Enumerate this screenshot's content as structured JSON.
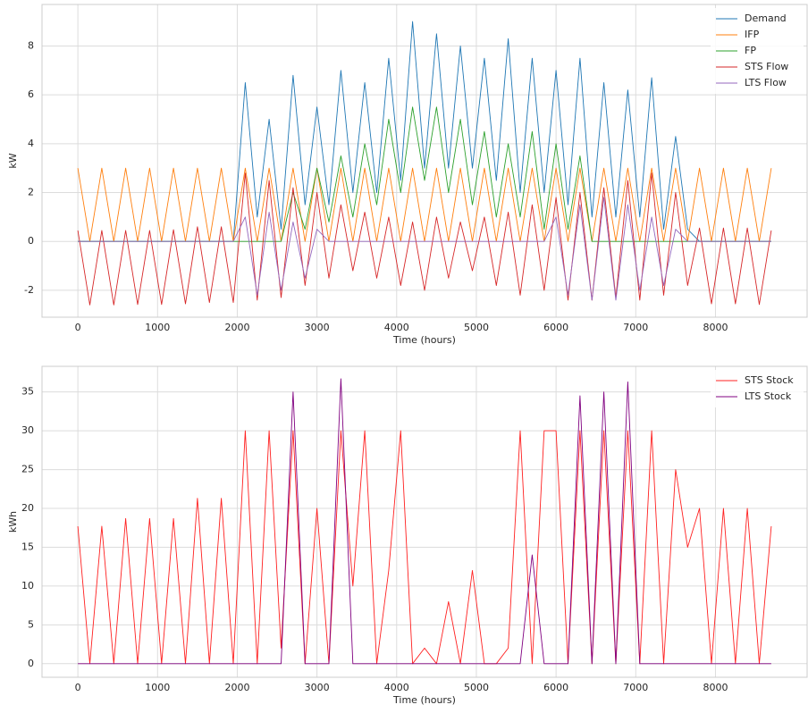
{
  "chart_data": [
    {
      "type": "line",
      "xlabel": "Time (hours)",
      "ylabel": "kW",
      "x": [
        0,
        150,
        300,
        450,
        600,
        750,
        900,
        1050,
        1200,
        1350,
        1500,
        1650,
        1800,
        1950,
        2100,
        2250,
        2400,
        2550,
        2700,
        2850,
        3000,
        3150,
        3300,
        3450,
        3600,
        3750,
        3900,
        4050,
        4200,
        4350,
        4500,
        4650,
        4800,
        4950,
        5100,
        5250,
        5400,
        5550,
        5700,
        5850,
        6000,
        6150,
        6300,
        6450,
        6600,
        6750,
        6900,
        7050,
        7200,
        7350,
        7500,
        7650,
        7800,
        7950,
        8100,
        8250,
        8400,
        8550,
        8700
      ],
      "series": [
        {
          "name": "Demand",
          "color": "#1f77b4",
          "values": [
            0,
            0,
            0,
            0,
            0,
            0,
            0,
            0,
            0,
            0,
            0,
            0,
            0,
            0,
            6.5,
            1,
            5,
            0.5,
            6.8,
            1.5,
            5.5,
            1.5,
            7,
            2,
            6.5,
            2,
            7.5,
            2.5,
            9,
            3,
            8.5,
            3,
            8,
            3,
            7.5,
            2.5,
            8.3,
            2,
            7.5,
            2,
            7,
            1.5,
            7.5,
            1,
            6.5,
            1,
            6.2,
            1,
            6.7,
            0.5,
            4.3,
            0.5,
            0,
            0,
            0,
            0,
            0,
            0,
            0
          ]
        },
        {
          "name": "IFP",
          "color": "#ff7f0e",
          "values": [
            3,
            0,
            3,
            0,
            3,
            0,
            3,
            0,
            3,
            0,
            3,
            0,
            3,
            0,
            3,
            0,
            3,
            0,
            3,
            0,
            3,
            0,
            3,
            0,
            3,
            0,
            3,
            0,
            3,
            0,
            3,
            0,
            3,
            0,
            3,
            0,
            3,
            0,
            3,
            0,
            3,
            0,
            3,
            0,
            3,
            0,
            3,
            0,
            3,
            0,
            3,
            0,
            3,
            0,
            3,
            0,
            3,
            0,
            3
          ]
        },
        {
          "name": "FP",
          "color": "#2ca02c",
          "values": [
            0,
            0,
            0,
            0,
            0,
            0,
            0,
            0,
            0,
            0,
            0,
            0,
            0,
            0,
            0,
            0,
            0,
            0,
            2,
            0.5,
            3,
            0.8,
            3.5,
            1,
            4,
            1.5,
            5,
            2,
            5.5,
            2.5,
            5.5,
            2,
            5,
            1.5,
            4.5,
            1,
            4,
            1,
            4.5,
            0.5,
            4,
            0.5,
            3.5,
            0,
            0,
            0,
            0,
            0,
            0,
            0,
            0,
            0,
            0,
            0,
            0,
            0,
            0,
            0,
            0
          ]
        },
        {
          "name": "STS Flow",
          "color": "#d62728",
          "values": [
            0.45,
            -2.6,
            0.45,
            -2.6,
            0.45,
            -2.58,
            0.45,
            -2.58,
            0.48,
            -2.55,
            0.6,
            -2.5,
            0.6,
            -2.5,
            2.8,
            -2.4,
            2.5,
            -2.3,
            2.2,
            -1.8,
            2,
            -1.5,
            1.5,
            -1.2,
            1.2,
            -1.5,
            1,
            -1.8,
            0.8,
            -2,
            1,
            -1.5,
            0.8,
            -1.2,
            1,
            -1.8,
            1.2,
            -2.2,
            1.5,
            -2,
            1.8,
            -2.4,
            2,
            -2.4,
            2.2,
            -2.3,
            2.5,
            -2.4,
            2.8,
            -2.2,
            2,
            -1.8,
            0.55,
            -2.55,
            0.55,
            -2.55,
            0.55,
            -2.58,
            0.45
          ]
        },
        {
          "name": "LTS Flow",
          "color": "#9467bd",
          "values": [
            0,
            0,
            0,
            0,
            0,
            0,
            0,
            0,
            0,
            0,
            0,
            0,
            0,
            0,
            1,
            -2.2,
            1.2,
            -2,
            0.8,
            -1.5,
            0.5,
            0,
            0,
            0,
            0,
            0,
            0,
            0,
            0,
            0,
            0,
            0,
            0,
            0,
            0,
            0,
            0,
            0,
            0,
            0,
            1,
            -2.2,
            1.5,
            -2.4,
            1.8,
            -2.4,
            1.5,
            -2,
            1,
            -1.8,
            0.5,
            0,
            0,
            0,
            0,
            0,
            0,
            0,
            0
          ]
        }
      ],
      "xlim": [
        -450,
        9150
      ],
      "ylim": [
        -3.1,
        9.7
      ],
      "xticks": [
        0,
        1000,
        2000,
        3000,
        4000,
        5000,
        6000,
        7000,
        8000
      ],
      "yticks": [
        -2,
        0,
        2,
        4,
        6,
        8
      ],
      "grid": true,
      "legend": "upper right"
    },
    {
      "type": "line",
      "xlabel": "Time (hours)",
      "ylabel": "kWh",
      "x": [
        0,
        150,
        300,
        450,
        600,
        750,
        900,
        1050,
        1200,
        1350,
        1500,
        1650,
        1800,
        1950,
        2100,
        2250,
        2400,
        2550,
        2700,
        2850,
        3000,
        3150,
        3300,
        3450,
        3600,
        3750,
        3900,
        4050,
        4200,
        4350,
        4500,
        4650,
        4800,
        4950,
        5100,
        5250,
        5400,
        5550,
        5700,
        5850,
        6000,
        6150,
        6300,
        6450,
        6600,
        6750,
        6900,
        7050,
        7200,
        7350,
        7500,
        7650,
        7800,
        7950,
        8100,
        8250,
        8400,
        8550,
        8700
      ],
      "series": [
        {
          "name": "STS Stock",
          "color": "#ff2020",
          "values": [
            17.7,
            0,
            17.7,
            0,
            18.7,
            0,
            18.7,
            0,
            18.7,
            0,
            21.3,
            0,
            21.3,
            0,
            30,
            0,
            30,
            2,
            30,
            0,
            20,
            0,
            30,
            10,
            30,
            0,
            12,
            30,
            0,
            2,
            0,
            8,
            0,
            12,
            0,
            0,
            2,
            30,
            0,
            30,
            30,
            0,
            30,
            0,
            30,
            0,
            30,
            0,
            30,
            0,
            25,
            15,
            20,
            0,
            20,
            0,
            20,
            0,
            17.7
          ]
        },
        {
          "name": "LTS Stock",
          "color": "#800080",
          "values": [
            0,
            0,
            0,
            0,
            0,
            0,
            0,
            0,
            0,
            0,
            0,
            0,
            0,
            0,
            0,
            0,
            0,
            0,
            35,
            0,
            0,
            0,
            36.7,
            0,
            0,
            0,
            0,
            0,
            0,
            0,
            0,
            0,
            0,
            0,
            0,
            0,
            0,
            0,
            14,
            0,
            0,
            0,
            34.5,
            0,
            35,
            0,
            36.3,
            0,
            0,
            0,
            0,
            0,
            0,
            0,
            0,
            0,
            0,
            0,
            0
          ]
        }
      ],
      "xlim": [
        -450,
        9150
      ],
      "ylim": [
        -1.75,
        38.3
      ],
      "xticks": [
        0,
        1000,
        2000,
        3000,
        4000,
        5000,
        6000,
        7000,
        8000
      ],
      "yticks": [
        0,
        5,
        10,
        15,
        20,
        25,
        30,
        35
      ],
      "grid": true,
      "legend": "upper right"
    }
  ]
}
